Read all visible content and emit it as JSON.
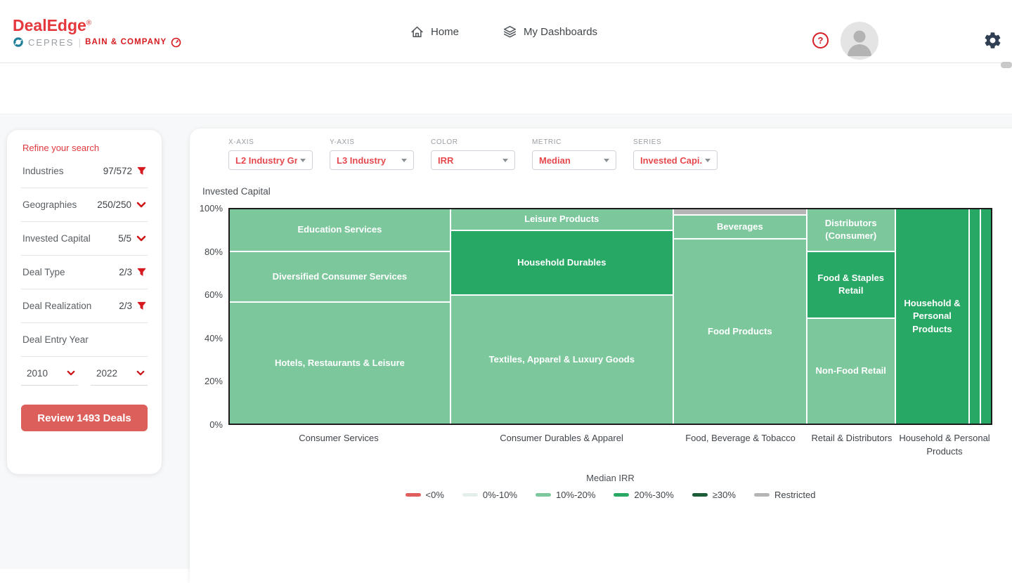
{
  "colors": {
    "brand_red": "#e5383d",
    "accent_red": "#d6191f",
    "button_red": "#dc5f5b",
    "dropdown_value_red": "#e5484d"
  },
  "header": {
    "logo": {
      "title": "DealEdge",
      "reg": "®",
      "cepres": "CEPRES",
      "divider": "|",
      "bain": "BAIN & COMPANY"
    },
    "nav": [
      {
        "label": "Home"
      },
      {
        "label": "My Dashboards"
      }
    ],
    "help": "?"
  },
  "sidebar": {
    "title": "Refine your search",
    "filters": [
      {
        "label": "Industries",
        "value": "97/572",
        "icon": "funnel"
      },
      {
        "label": "Geographies",
        "value": "250/250",
        "icon": "chevron"
      },
      {
        "label": "Invested Capital",
        "value": "5/5",
        "icon": "chevron"
      },
      {
        "label": "Deal Type",
        "value": "2/3",
        "icon": "funnel"
      },
      {
        "label": "Deal Realization",
        "value": "2/3",
        "icon": "funnel"
      },
      {
        "label": "Deal Entry Year",
        "value": "",
        "icon": "none"
      }
    ],
    "year_from": "2010",
    "year_to": "2022",
    "review_button": "Review 1493 Deals"
  },
  "controls": [
    {
      "label": "X-AXIS",
      "value": "L2 Industry Gr..."
    },
    {
      "label": "Y-AXIS",
      "value": "L3 Industry"
    },
    {
      "label": "COLOR",
      "value": "IRR"
    },
    {
      "label": "METRIC",
      "value": "Median"
    },
    {
      "label": "SERIES",
      "value": "Invested Capi..."
    }
  ],
  "chart_data": {
    "type": "marimekko",
    "ylabel": "Invested Capital",
    "yticks": [
      "100%",
      "80%",
      "60%",
      "40%",
      "20%",
      "0%"
    ],
    "ylim": [
      0,
      100
    ],
    "bucket_colors": {
      "lt0": "#e05d5d",
      "0-10": "#e3efe8",
      "10-20": "#7dc79d",
      "20-30": "#28a865",
      "gte30": "#1c5c38",
      "restricted": "#b5b5b5"
    },
    "legend": {
      "title": "Median IRR",
      "items": [
        {
          "label": "<0%",
          "color": "#e05d5d"
        },
        {
          "label": "0%-10%",
          "color": "#e3efe8"
        },
        {
          "label": "10%-20%",
          "color": "#7dc79d"
        },
        {
          "label": "20%-30%",
          "color": "#28a865"
        },
        {
          "label": "≥30%",
          "color": "#1c5c38"
        },
        {
          "label": "Restricted",
          "color": "#b5b5b5"
        }
      ]
    },
    "columns": [
      {
        "label": "Consumer Services",
        "width": 29.1,
        "stacks": [
          {
            "width": 100,
            "segments": [
              {
                "name": "Education Services",
                "height": 19.5,
                "bucket": "10-20"
              },
              {
                "name": "Diversified Consumer Services",
                "height": 23.5,
                "bucket": "10-20"
              },
              {
                "name": "Hotels, Restaurants & Leisure",
                "height": 57,
                "bucket": "10-20"
              }
            ]
          }
        ]
      },
      {
        "label": "Consumer Durables & Apparel",
        "width": 29.3,
        "stacks": [
          {
            "width": 100,
            "segments": [
              {
                "name": "Leisure Products",
                "height": 9.5,
                "bucket": "10-20"
              },
              {
                "name": "Household Durables",
                "height": 30,
                "bucket": "20-30"
              },
              {
                "name": "Textiles, Apparel & Luxury Goods",
                "height": 60.5,
                "bucket": "10-20"
              }
            ]
          }
        ]
      },
      {
        "label": "Food, Beverage & Tobacco",
        "width": 17.5,
        "stacks": [
          {
            "width": 100,
            "segments": [
              {
                "name": "",
                "height": 2.3,
                "bucket": "restricted"
              },
              {
                "name": "Beverages",
                "height": 10.5,
                "bucket": "10-20"
              },
              {
                "name": "Food Products",
                "height": 87.2,
                "bucket": "10-20"
              }
            ]
          }
        ]
      },
      {
        "label": "Retail & Distributors",
        "width": 11.5,
        "stacks": [
          {
            "width": 100,
            "segments": [
              {
                "name": "Distributors (Consumer)",
                "height": 19.5,
                "bucket": "10-20"
              },
              {
                "name": "Food & Staples Retail",
                "height": 31,
                "bucket": "20-30"
              },
              {
                "name": "Non-Food Retail",
                "height": 49.5,
                "bucket": "10-20"
              }
            ]
          }
        ]
      },
      {
        "label": "Household & Personal Products",
        "width": 12.6,
        "stacks": [
          {
            "width": 79,
            "segments": [
              {
                "name": "Household & Personal Products",
                "height": 100,
                "bucket": "20-30"
              }
            ]
          },
          {
            "width": 10.5,
            "segments": [
              {
                "name": "",
                "height": 100,
                "bucket": "20-30"
              }
            ]
          },
          {
            "width": 10.5,
            "segments": [
              {
                "name": "",
                "height": 100,
                "bucket": "20-30"
              }
            ]
          }
        ]
      }
    ]
  }
}
